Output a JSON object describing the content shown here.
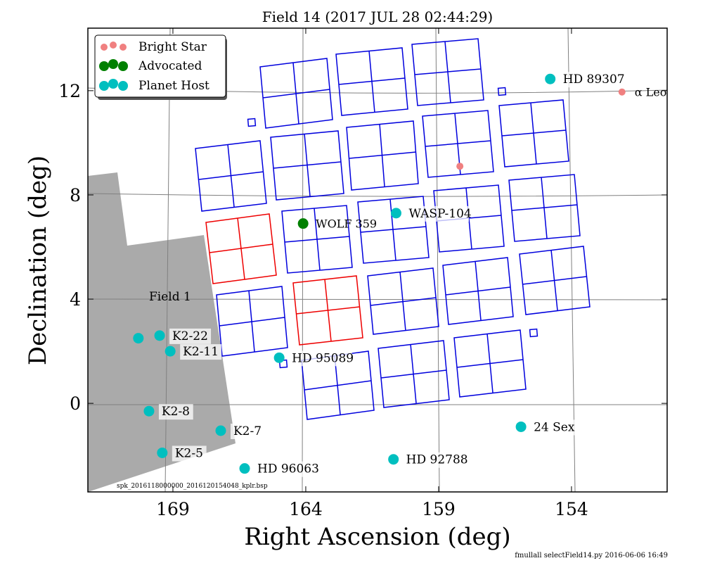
{
  "chart_data": {
    "type": "scatter",
    "title": "Field 14 (2017 JUL 28 02:44:29)",
    "xlabel": "Right Ascension (deg)",
    "ylabel": "Declination (deg)",
    "xlim": [
      172.2,
      150.4
    ],
    "ylim": [
      -3.4,
      14.4
    ],
    "x_ticks": [
      {
        "value": 169,
        "label": "169"
      },
      {
        "value": 164,
        "label": "164"
      },
      {
        "value": 159,
        "label": "159"
      },
      {
        "value": 154,
        "label": "154"
      }
    ],
    "y_ticks": [
      {
        "value": 0,
        "label": "0"
      },
      {
        "value": 4,
        "label": "4"
      },
      {
        "value": 8,
        "label": "8"
      },
      {
        "value": 12,
        "label": "12"
      }
    ],
    "grid": true,
    "legend": {
      "placement": "top-left",
      "entries": [
        {
          "label": "Bright Star",
          "color": "#f08080"
        },
        {
          "label": "Advocated",
          "color": "#008000"
        },
        {
          "label": "Planet Host",
          "color": "#00bfbf"
        }
      ]
    },
    "region_label": "Field 1",
    "footer_file": "spk_2016118000000_2016120154048_kplr.bsp",
    "footer_credit": "fmullall selectField14.py 2016-06-06 16:49",
    "colors": {
      "module": "#0000dd",
      "advocated_module": "#ee0000",
      "field1": "#aaaaaa",
      "grid": "#808080"
    },
    "points": [
      {
        "name": "Bright Star",
        "ra": 158.2,
        "dec": 9.1,
        "category": "bright",
        "label": ""
      },
      {
        "name": "α Leo",
        "ra": 152.1,
        "dec": 11.95,
        "category": "bright",
        "label": "α Leo"
      },
      {
        "name": "WOLF 359",
        "ra": 164.1,
        "dec": 6.9,
        "category": "advocated",
        "label": "WOLF 359"
      },
      {
        "name": "WASP-104",
        "ra": 160.6,
        "dec": 7.3,
        "category": "host",
        "label": "WASP-104"
      },
      {
        "name": "HD 89307",
        "ra": 154.8,
        "dec": 12.45,
        "category": "host",
        "label": "HD 89307"
      },
      {
        "name": "HD 95089",
        "ra": 165.0,
        "dec": 1.75,
        "category": "host",
        "label": "HD 95089"
      },
      {
        "name": "K2-22",
        "ra": 169.5,
        "dec": 2.6,
        "category": "host",
        "label": "K2-22"
      },
      {
        "name": "K2-11",
        "ra": 169.1,
        "dec": 2.0,
        "category": "host",
        "label": "K2-11"
      },
      {
        "name": "unlabeled host",
        "ra": 170.3,
        "dec": 2.5,
        "category": "host",
        "label": ""
      },
      {
        "name": "K2-8",
        "ra": 169.9,
        "dec": -0.3,
        "category": "host",
        "label": "K2-8"
      },
      {
        "name": "K2-7",
        "ra": 167.2,
        "dec": -1.05,
        "category": "host",
        "label": "K2-7"
      },
      {
        "name": "K2-5",
        "ra": 169.4,
        "dec": -1.9,
        "category": "host",
        "label": "K2-5"
      },
      {
        "name": "HD 96063",
        "ra": 166.3,
        "dec": -2.5,
        "category": "host",
        "label": "HD 96063"
      },
      {
        "name": "HD 92788",
        "ra": 160.7,
        "dec": -2.15,
        "category": "host",
        "label": "HD 92788"
      },
      {
        "name": "24 Sex",
        "ra": 155.9,
        "dec": -0.9,
        "category": "host",
        "label": "24 Sex"
      }
    ]
  }
}
